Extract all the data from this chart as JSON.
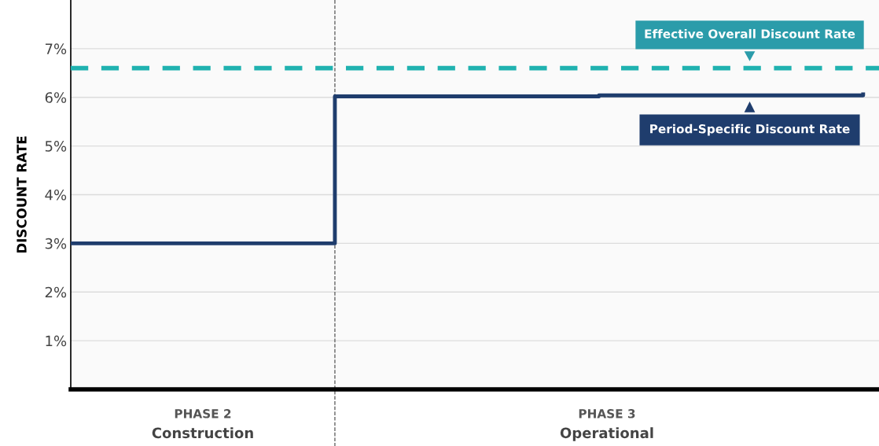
{
  "chart_data": {
    "type": "step",
    "ylabel": "DISCOUNT RATE",
    "categories": [
      null,
      null,
      null,
      null
    ],
    "ylim": [
      0,
      8
    ],
    "yticks": [
      {
        "value": 1,
        "label": "1%"
      },
      {
        "value": 2,
        "label": "2%"
      },
      {
        "value": 3,
        "label": "3%"
      },
      {
        "value": 4,
        "label": "4%"
      },
      {
        "value": 5,
        "label": "5%"
      },
      {
        "value": 6,
        "label": "6%"
      },
      {
        "value": 7,
        "label": "7%"
      }
    ],
    "grid": "y",
    "series": [
      {
        "name": "Period-Specific Discount Rate",
        "color": "#1f3d6d",
        "values": [
          3,
          6.02,
          6.04,
          6.06
        ]
      }
    ],
    "ref_lines": [
      {
        "axis": "y",
        "value": 6.6,
        "label": "Effective Overall Discount Rate",
        "color": "#20b2b0",
        "line_style": "dashed"
      }
    ],
    "annotations": [
      "PHASE 2",
      "Construction",
      "PHASE 3",
      "Operational"
    ]
  }
}
